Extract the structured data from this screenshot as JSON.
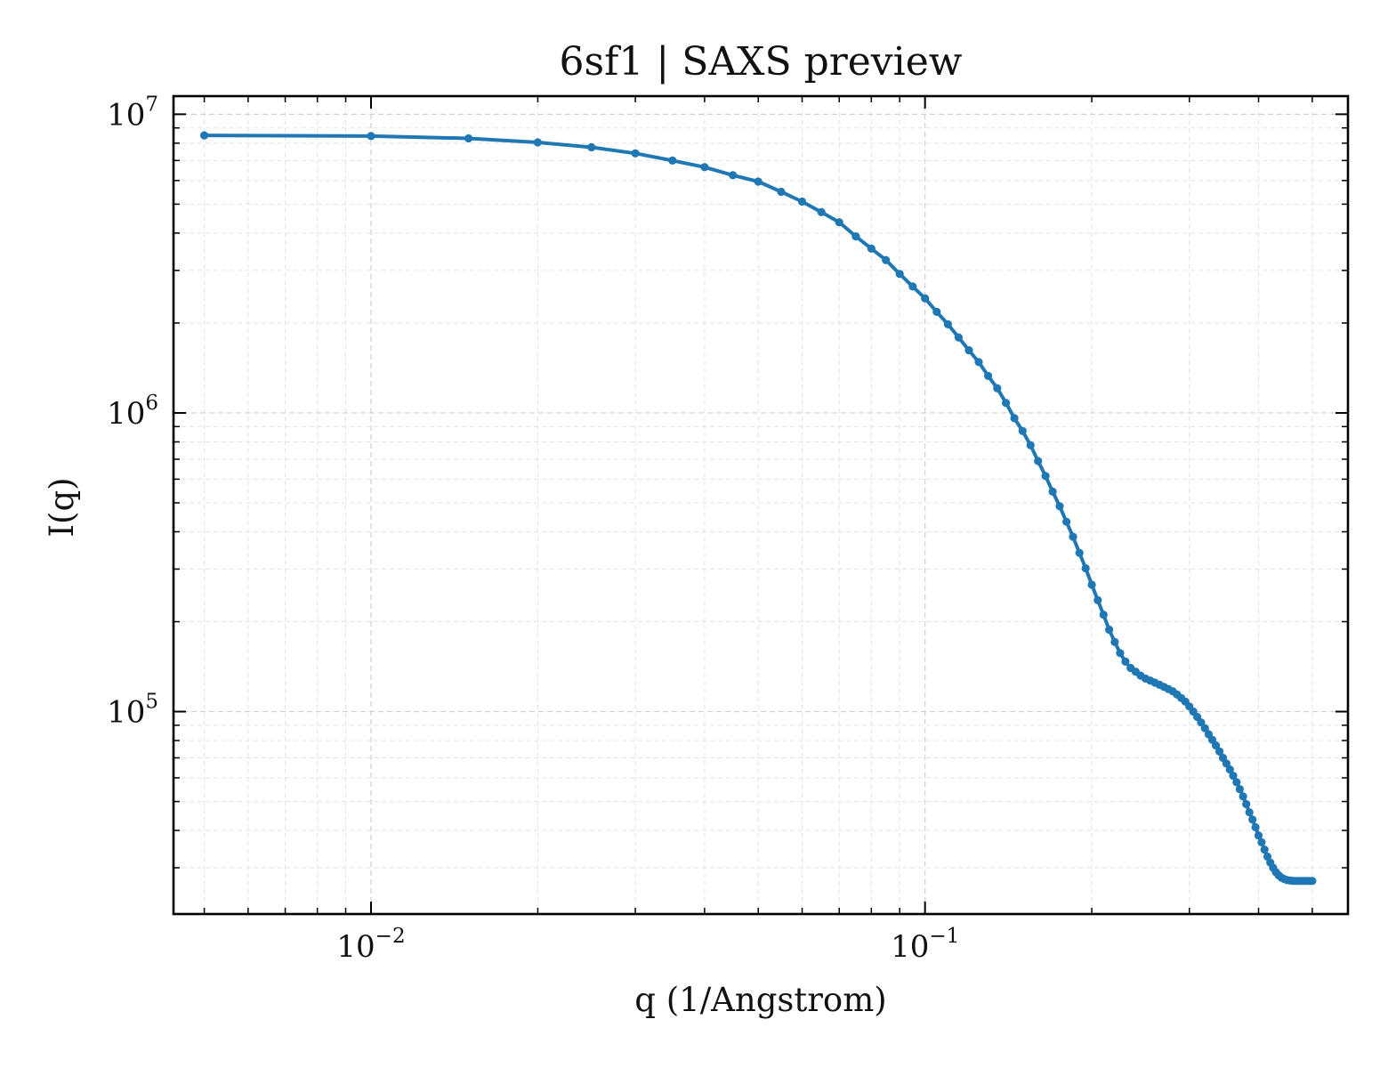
{
  "chart_data": {
    "type": "line",
    "title": "6sf1 | SAXS preview",
    "xlabel": "q (1/Angstrom)",
    "ylabel": "I(q)",
    "xscale": "log",
    "yscale": "log",
    "xlim": [
      0.0044,
      0.58
    ],
    "ylim": [
      21000,
      11500000
    ],
    "grid": true,
    "legend": "none",
    "x_ticks": [
      {
        "value": 0.01,
        "base": "10",
        "exp": "−2"
      },
      {
        "value": 0.1,
        "base": "10",
        "exp": "−1"
      }
    ],
    "y_ticks": [
      {
        "value": 100000,
        "base": "10",
        "exp": "5"
      },
      {
        "value": 1000000,
        "base": "10",
        "exp": "6"
      },
      {
        "value": 10000000,
        "base": "10",
        "exp": "7"
      }
    ],
    "series": [
      {
        "color": "#1f77b4",
        "marker": "circle",
        "x": [
          0.005,
          0.01,
          0.015,
          0.02,
          0.025,
          0.03,
          0.035,
          0.04,
          0.045,
          0.05,
          0.055,
          0.06,
          0.065,
          0.07,
          0.075,
          0.08,
          0.085,
          0.09,
          0.095,
          0.1,
          0.105,
          0.11,
          0.115,
          0.12,
          0.125,
          0.13,
          0.135,
          0.14,
          0.145,
          0.15,
          0.155,
          0.16,
          0.165,
          0.17,
          0.175,
          0.18,
          0.185,
          0.19,
          0.195,
          0.2,
          0.205,
          0.21,
          0.215,
          0.22,
          0.225,
          0.23,
          0.235,
          0.24,
          0.245,
          0.25,
          0.255,
          0.26,
          0.265,
          0.27,
          0.275,
          0.28,
          0.285,
          0.29,
          0.295,
          0.3,
          0.305,
          0.31,
          0.315,
          0.32,
          0.325,
          0.33,
          0.335,
          0.34,
          0.345,
          0.35,
          0.355,
          0.36,
          0.365,
          0.37,
          0.375,
          0.38,
          0.385,
          0.39,
          0.395,
          0.4,
          0.405,
          0.41,
          0.415,
          0.42,
          0.425,
          0.43,
          0.435,
          0.44,
          0.445,
          0.45,
          0.455,
          0.46,
          0.465,
          0.47,
          0.475,
          0.48,
          0.485,
          0.49,
          0.495,
          0.5
        ],
        "y": [
          8500000,
          8450000,
          8300000,
          8050000,
          7750000,
          7400000,
          7000000,
          6650000,
          6250000,
          5950000,
          5500000,
          5100000,
          4700000,
          4350000,
          3900000,
          3550000,
          3250000,
          2920000,
          2650000,
          2420000,
          2180000,
          1980000,
          1790000,
          1620000,
          1480000,
          1330000,
          1210000,
          1080000,
          960000,
          870000,
          780000,
          690000,
          615000,
          545000,
          487000,
          432000,
          385000,
          340000,
          302000,
          266000,
          236000,
          211000,
          188000,
          171000,
          157000,
          147000,
          140000,
          136000,
          132000,
          129000,
          127000,
          125000,
          123000,
          121000,
          119000,
          117000,
          114000,
          111000,
          108000,
          104000,
          100000,
          96000,
          92000,
          88000,
          84000,
          80500,
          77000,
          73500,
          70000,
          67000,
          64000,
          61000,
          58000,
          55000,
          52000,
          49000,
          46000,
          43500,
          41000,
          38500,
          36500,
          34500,
          32700,
          31200,
          30000,
          29000,
          28300,
          27800,
          27500,
          27300,
          27200,
          27150,
          27100,
          27100,
          27100,
          27100,
          27100,
          27100,
          27100,
          27100
        ]
      }
    ]
  }
}
